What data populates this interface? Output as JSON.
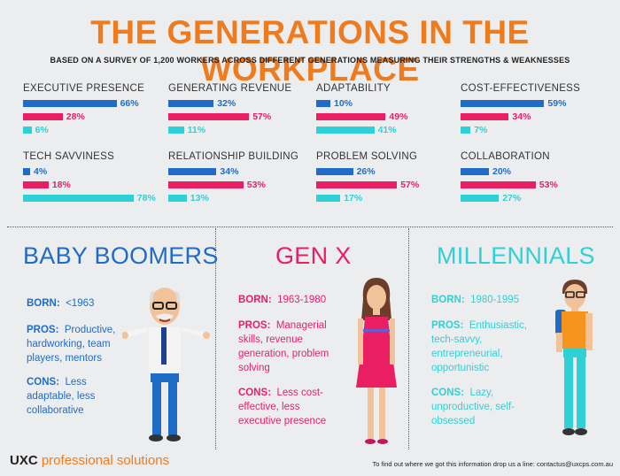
{
  "title": "THE GENERATIONS IN THE WORKPLACE",
  "subtitle": "BASED ON A SURVEY OF 1,200 WORKERS ACROSS DIFFERENT GENERATIONS MEASURING THEIR STRENGTHS & WEAKNESSES",
  "colors": {
    "boomers": "#1f6cc7",
    "genx": "#ea1e63",
    "millennials": "#2fd0d6",
    "accent": "#ef7b1f"
  },
  "metrics": [
    {
      "name": "EXECUTIVE PRESENCE",
      "values": [
        66,
        28,
        6
      ],
      "labels": [
        "66%",
        "28%",
        "6%"
      ]
    },
    {
      "name": "GENERATING REVENUE",
      "values": [
        32,
        57,
        11
      ],
      "labels": [
        "32%",
        "57%",
        "11%"
      ]
    },
    {
      "name": "ADAPTABILITY",
      "values": [
        10,
        49,
        41
      ],
      "labels": [
        "10%",
        "49%",
        "41%"
      ]
    },
    {
      "name": "COST-EFFECTIVENESS",
      "values": [
        59,
        34,
        7
      ],
      "labels": [
        "59%",
        "34%",
        "7%"
      ]
    },
    {
      "name": "TECH SAVVINESS",
      "values": [
        4,
        18,
        78
      ],
      "labels": [
        "4%",
        "18%",
        "78%"
      ]
    },
    {
      "name": "RELATIONSHIP BUILDING",
      "values": [
        34,
        53,
        13
      ],
      "labels": [
        "34%",
        "53%",
        "13%"
      ]
    },
    {
      "name": "PROBLEM SOLVING",
      "values": [
        26,
        57,
        17
      ],
      "labels": [
        "26%",
        "57%",
        "17%"
      ]
    },
    {
      "name": "COLLABORATION",
      "values": [
        20,
        53,
        27
      ],
      "labels": [
        "20%",
        "53%",
        "27%"
      ]
    }
  ],
  "panels": {
    "boomers": {
      "title": "BABY BOOMERS",
      "born_label": "BORN:",
      "born": "<1963",
      "pros_label": "PROS:",
      "pros": "Productive, hardworking, team players, mentors",
      "cons_label": "CONS:",
      "cons": "Less adaptable, less collaborative"
    },
    "genx": {
      "title": "GEN X",
      "born_label": "BORN:",
      "born": "1963-1980",
      "pros_label": "PROS:",
      "pros": "Managerial skills, revenue generation, problem solving",
      "cons_label": "CONS:",
      "cons": "Less cost-effective, less executive presence"
    },
    "millennials": {
      "title": "MILLENNIALS",
      "born_label": "BORN:",
      "born": "1980-1995",
      "pros_label": "PROS:",
      "pros": "Enthusiastic, tech-savvy, entrepreneurial, opportunistic",
      "cons_label": "CONS:",
      "cons": "Lazy, unproductive, self-obsessed"
    }
  },
  "footer": {
    "brand_uxc": "UXC",
    "brand_ps": "professional solutions",
    "note": "To find out where we got this information drop us a line: contactus@uxcps.com.au"
  }
}
